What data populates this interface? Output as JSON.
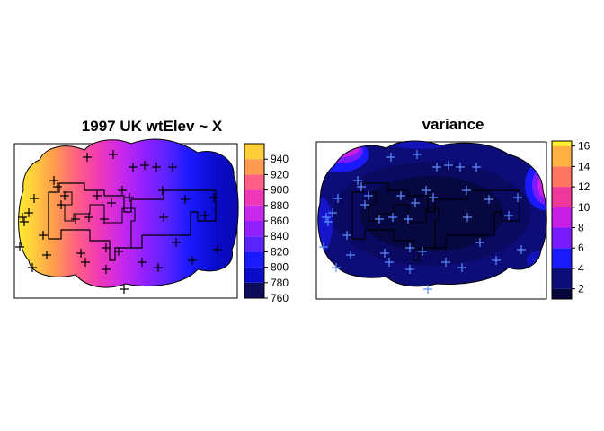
{
  "chart_data": [
    {
      "type": "heatmap",
      "title": "1997  UK wtElev ~ X",
      "colorbar": {
        "levels": [
          760,
          780,
          800,
          820,
          840,
          860,
          880,
          900,
          920,
          940,
          960
        ],
        "tick_labels": [
          "760",
          "780",
          "800",
          "820",
          "840",
          "860",
          "880",
          "900",
          "920",
          "940"
        ],
        "colors": [
          "#0d0d5c",
          "#0a0acb",
          "#1a1aff",
          "#5a23ff",
          "#9220ff",
          "#c828ec",
          "#ef38b8",
          "#ff5f85",
          "#ff9a4f",
          "#ffcf3a",
          "#fff22c"
        ],
        "range": [
          760,
          960
        ]
      },
      "gradient_direction": "high on the left (west), low on the right (east)",
      "marker": "+",
      "marker_color": "#000000"
    },
    {
      "type": "heatmap",
      "title": "variance",
      "colorbar": {
        "levels": [
          1,
          2,
          4,
          6,
          8,
          10,
          12,
          14,
          16
        ],
        "tick_labels": [
          "2",
          "4",
          "6",
          "8",
          "10",
          "12",
          "14",
          "16"
        ],
        "colors": [
          "#06063a",
          "#0d0d7a",
          "#1a1aff",
          "#7a1aff",
          "#c81ee6",
          "#f0379b",
          "#ff7560",
          "#ffb040",
          "#fff22c"
        ],
        "range": [
          1,
          16.5
        ]
      },
      "note": "low variance near points, high variance at outer corners",
      "marker": "+",
      "marker_color": "#5b8cff"
    }
  ]
}
